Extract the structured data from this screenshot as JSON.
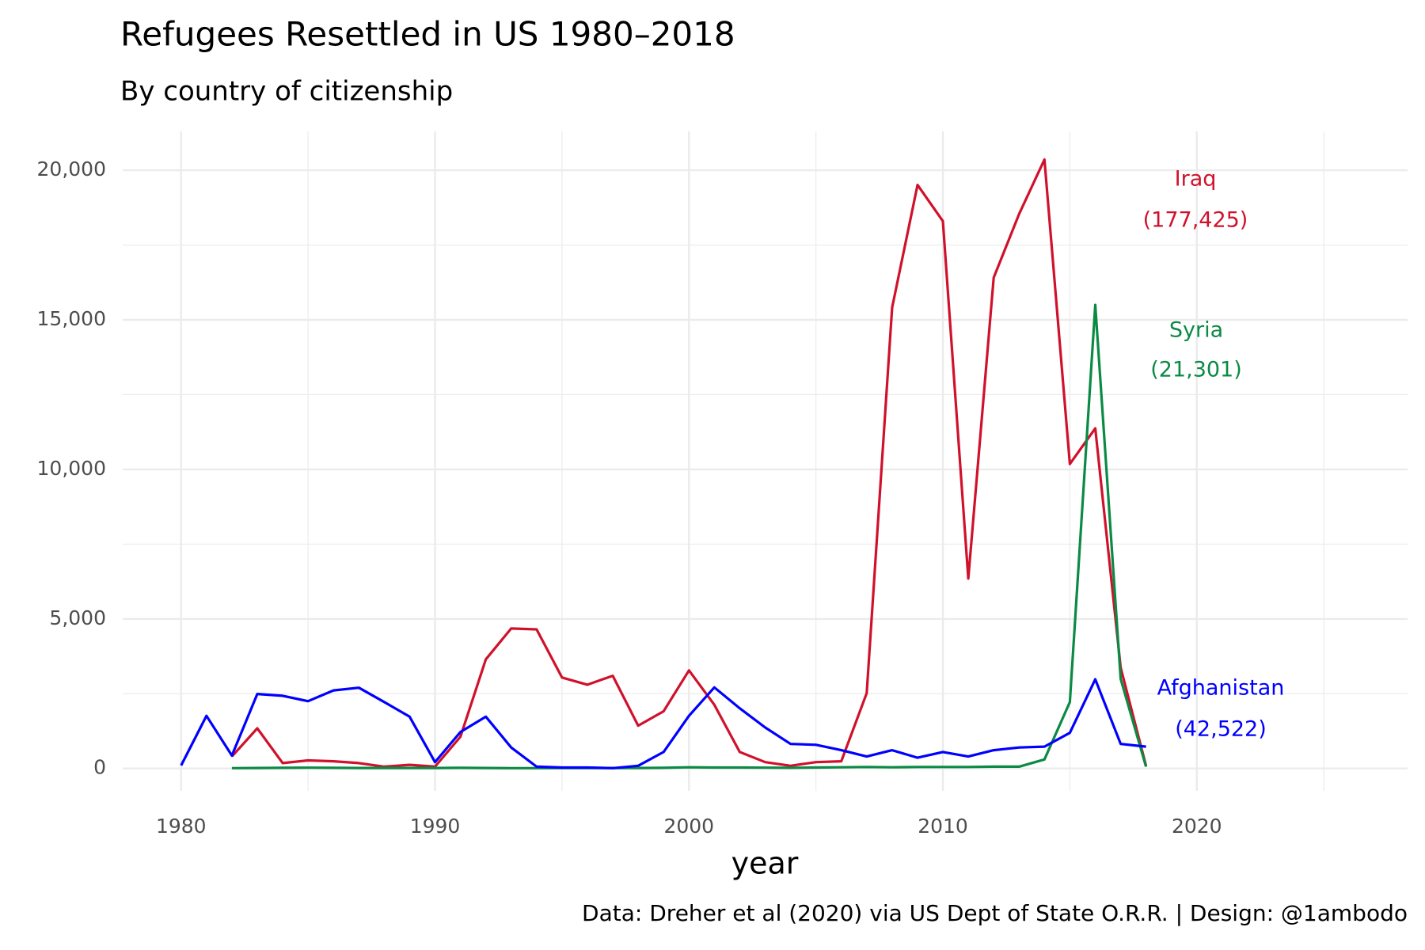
{
  "chart_data": {
    "type": "line",
    "title": "Refugees Resettled in US 1980–2018",
    "subtitle": "By country of citizenship",
    "x_label": "year",
    "caption": "Data: Dreher et al (2020) via US Dept of State O.R.R. | Design: @1ambodo",
    "x": [
      1980,
      1981,
      1982,
      1983,
      1984,
      1985,
      1986,
      1987,
      1988,
      1989,
      1990,
      1991,
      1992,
      1993,
      1994,
      1995,
      1996,
      1997,
      1998,
      1999,
      2000,
      2001,
      2002,
      2003,
      2004,
      2005,
      2006,
      2007,
      2008,
      2009,
      2010,
      2011,
      2012,
      2013,
      2014,
      2015,
      2016,
      2017,
      2018
    ],
    "xlim": [
      1977.7,
      2028.3
    ],
    "xticks": [
      1980,
      1990,
      2000,
      2010,
      2020
    ],
    "ylim": [
      -750,
      21300
    ],
    "yticks": [
      {
        "value": 0,
        "label": "0"
      },
      {
        "value": 5000,
        "label": "5,000"
      },
      {
        "value": 10000,
        "label": "10,000"
      },
      {
        "value": 15000,
        "label": "15,000"
      },
      {
        "value": 20000,
        "label": "20,000"
      }
    ],
    "grid": true,
    "series": [
      {
        "name": "Iraq",
        "total_label": "(177,425)",
        "color": "#d0112b",
        "values": [
          null,
          null,
          400,
          1340,
          180,
          270,
          240,
          180,
          60,
          120,
          60,
          1060,
          3650,
          4680,
          4650,
          3040,
          2800,
          3100,
          1430,
          1910,
          3280,
          2130,
          550,
          210,
          90,
          210,
          240,
          2520,
          15410,
          19510,
          18300,
          6350,
          16410,
          18540,
          20360,
          10180,
          11370,
          3370,
          90
        ]
      },
      {
        "name": "Syria",
        "total_label": "(21,301)",
        "color": "#0b8a45",
        "values": [
          null,
          null,
          10,
          15,
          20,
          25,
          20,
          15,
          15,
          15,
          15,
          20,
          15,
          10,
          10,
          15,
          15,
          15,
          15,
          20,
          40,
          30,
          30,
          25,
          20,
          30,
          40,
          50,
          40,
          50,
          50,
          50,
          60,
          60,
          300,
          2220,
          15500,
          2990,
          60
        ]
      },
      {
        "name": "Afghanistan",
        "total_label": "(42,522)",
        "color": "#0000ff",
        "values": [
          100,
          1760,
          430,
          2490,
          2430,
          2250,
          2610,
          2700,
          2220,
          1730,
          210,
          1220,
          1730,
          700,
          60,
          30,
          30,
          10,
          90,
          550,
          1760,
          2710,
          2010,
          1370,
          820,
          790,
          610,
          400,
          610,
          360,
          550,
          400,
          610,
          700,
          730,
          1190,
          2980,
          820,
          730
        ]
      }
    ]
  }
}
